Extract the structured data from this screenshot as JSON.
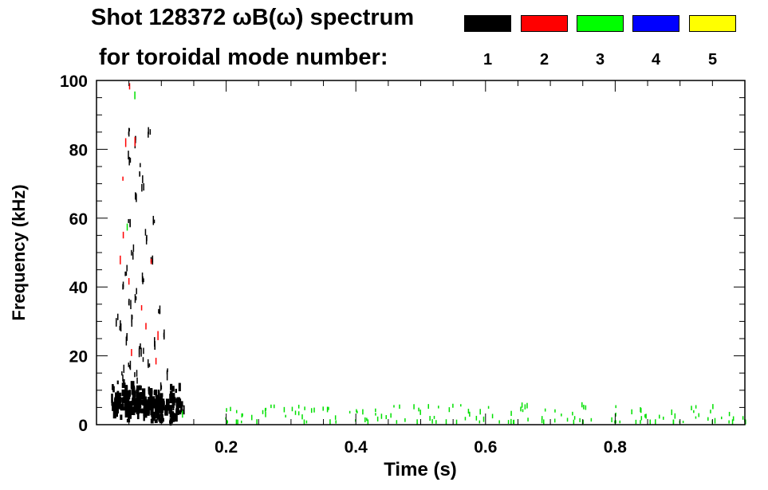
{
  "header": {
    "title": "Shot 128372 ωB(ω) spectrum",
    "subtitle": "for toroidal mode number:",
    "legend": [
      {
        "label": "1",
        "color": "#000000"
      },
      {
        "label": "2",
        "color": "#ff0000"
      },
      {
        "label": "3",
        "color": "#00ff00"
      },
      {
        "label": "4",
        "color": "#0000ff"
      },
      {
        "label": "5",
        "color": "#ffff00"
      }
    ]
  },
  "chart_data": {
    "type": "heatmap",
    "title": "Shot 128372 ωB(ω) spectrum",
    "xlabel": "Time (s)",
    "ylabel": "Frequency (kHz)",
    "xlim": [
      0,
      1.0
    ],
    "ylim": [
      0,
      100
    ],
    "xticks": [
      0.2,
      0.4,
      0.6,
      0.8
    ],
    "xtick_labels": [
      "0.2",
      "0.4",
      "0.6",
      "0.8"
    ],
    "yticks": [
      0,
      20,
      40,
      60,
      80,
      100
    ],
    "ytick_labels": [
      "0",
      "20",
      "40",
      "60",
      "80",
      "100"
    ],
    "legend_title": "toroidal mode number",
    "spots": {
      "mode1": [
        [
          0.03,
          8
        ],
        [
          0.035,
          5
        ],
        [
          0.04,
          10
        ],
        [
          0.045,
          6
        ],
        [
          0.05,
          4
        ],
        [
          0.055,
          9
        ],
        [
          0.06,
          7
        ],
        [
          0.065,
          5
        ],
        [
          0.07,
          8
        ],
        [
          0.075,
          6
        ],
        [
          0.08,
          4
        ],
        [
          0.085,
          7
        ],
        [
          0.09,
          5
        ],
        [
          0.095,
          6
        ],
        [
          0.1,
          4
        ],
        [
          0.105,
          3
        ],
        [
          0.04,
          15
        ],
        [
          0.05,
          18
        ],
        [
          0.06,
          14
        ],
        [
          0.07,
          20
        ],
        [
          0.045,
          25
        ],
        [
          0.055,
          30
        ],
        [
          0.065,
          22
        ],
        [
          0.08,
          17
        ],
        [
          0.09,
          24
        ],
        [
          0.1,
          12
        ],
        [
          0.035,
          28
        ],
        [
          0.05,
          35
        ],
        [
          0.06,
          38
        ],
        [
          0.045,
          45
        ],
        [
          0.055,
          50
        ],
        [
          0.07,
          42
        ],
        [
          0.075,
          55
        ],
        [
          0.085,
          47
        ],
        [
          0.05,
          60
        ],
        [
          0.06,
          65
        ],
        [
          0.07,
          70
        ],
        [
          0.05,
          78
        ],
        [
          0.06,
          82
        ],
        [
          0.05,
          86
        ],
        [
          0.08,
          85
        ],
        [
          0.065,
          74
        ],
        [
          0.088,
          60
        ],
        [
          0.095,
          32
        ],
        [
          0.105,
          25
        ],
        [
          0.11,
          15
        ],
        [
          0.125,
          5
        ],
        [
          0.12,
          8
        ],
        [
          0.03,
          30
        ],
        [
          0.04,
          40
        ]
      ],
      "mode2": [
        [
          0.05,
          99
        ],
        [
          0.045,
          83
        ],
        [
          0.06,
          82
        ],
        [
          0.04,
          70
        ],
        [
          0.035,
          47
        ],
        [
          0.05,
          42
        ],
        [
          0.04,
          56
        ],
        [
          0.085,
          47
        ],
        [
          0.07,
          35
        ],
        [
          0.095,
          27
        ],
        [
          0.09,
          17
        ],
        [
          0.055,
          22
        ],
        [
          0.075,
          30
        ]
      ],
      "mode3": [
        [
          0.057,
          97
        ],
        [
          0.048,
          57
        ],
        [
          0.13,
          5
        ],
        [
          0.255,
          6
        ],
        [
          0.2,
          2.5
        ],
        [
          0.23,
          3
        ],
        [
          0.26,
          2.5
        ],
        [
          0.3,
          3
        ],
        [
          0.33,
          2.5
        ],
        [
          0.36,
          3
        ],
        [
          0.4,
          3
        ],
        [
          0.43,
          2.5
        ],
        [
          0.46,
          3
        ],
        [
          0.5,
          3
        ],
        [
          0.53,
          2.5
        ],
        [
          0.56,
          3
        ],
        [
          0.6,
          3
        ],
        [
          0.63,
          2.5
        ],
        [
          0.66,
          3
        ],
        [
          0.7,
          3
        ],
        [
          0.73,
          2.5
        ],
        [
          0.76,
          3
        ],
        [
          0.8,
          2.5
        ],
        [
          0.83,
          2.5
        ],
        [
          0.86,
          2.5
        ],
        [
          0.9,
          2.5
        ],
        [
          0.93,
          2.5
        ],
        [
          0.96,
          2.5
        ],
        [
          0.99,
          2.5
        ]
      ]
    }
  }
}
